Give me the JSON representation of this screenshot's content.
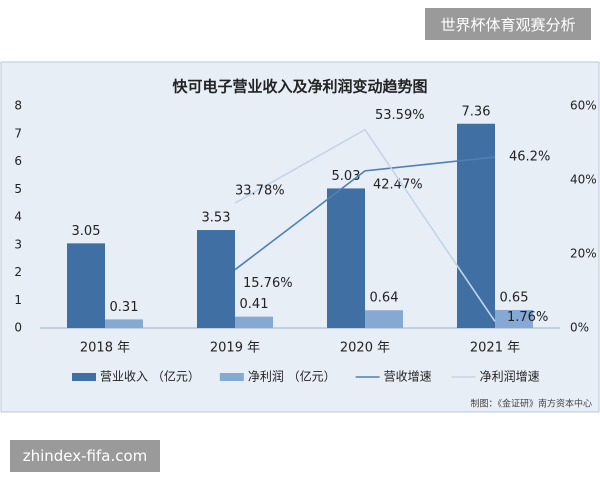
{
  "header": {
    "label": "世界杯体育观赛分析"
  },
  "footer": {
    "label": "zhindex-fifa.com"
  },
  "chart_data": {
    "type": "bar",
    "title": "快可电子营业收入及净利润变动趋势图",
    "source": "制图：《金证研》南方资本中心",
    "categories": [
      "2018 年",
      "2019 年",
      "2020 年",
      "2021 年"
    ],
    "series": [
      {
        "name": "营业收入 （亿元）",
        "type": "bar",
        "color": "#3f6fa3",
        "values": [
          3.05,
          3.53,
          5.03,
          7.36
        ]
      },
      {
        "name": "净利润 （亿元）",
        "type": "bar",
        "color": "#86a9d4",
        "values": [
          0.31,
          0.41,
          0.64,
          0.65
        ]
      },
      {
        "name": "营收增速",
        "type": "line",
        "axis": "y2",
        "color": "#4e80b6",
        "values": [
          null,
          15.76,
          42.47,
          46.2
        ],
        "value_labels": [
          null,
          "15.76%",
          "42.47%",
          "46.2%"
        ]
      },
      {
        "name": "净利润增速",
        "type": "line",
        "axis": "y2",
        "color": "#c3d5e9",
        "values": [
          null,
          33.78,
          53.59,
          1.76
        ],
        "value_labels": [
          null,
          "33.78%",
          "53.59%",
          "1.76%"
        ]
      }
    ],
    "ylim": [
      0,
      8
    ],
    "yticks": [
      0,
      1,
      2,
      3,
      4,
      5,
      6,
      7,
      8
    ],
    "y2lim": [
      0,
      60
    ],
    "y2ticks": [
      {
        "value": 0,
        "label": "0%"
      },
      {
        "value": 20,
        "label": "20%"
      },
      {
        "value": 40,
        "label": "40%"
      },
      {
        "value": 60,
        "label": "60%"
      }
    ],
    "legend": "bottom"
  }
}
